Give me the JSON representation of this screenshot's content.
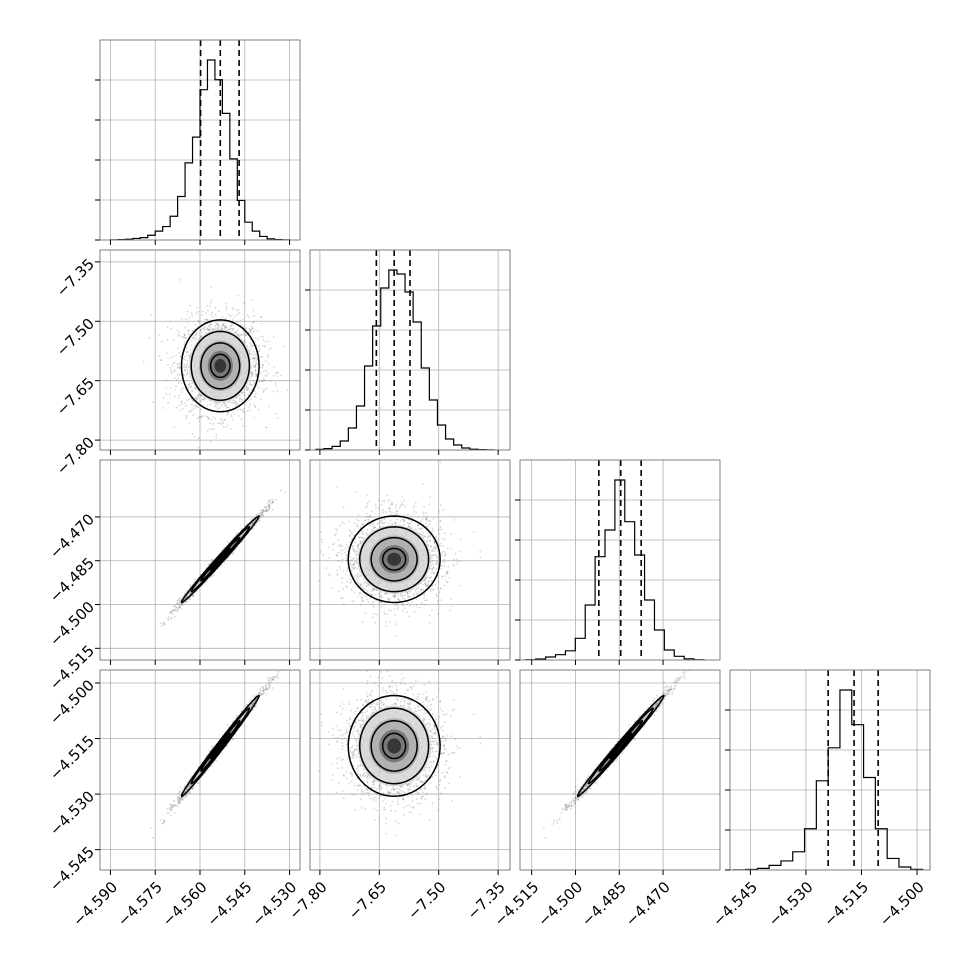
{
  "chart_data": {
    "type": "corner",
    "n_params": 4,
    "ticks": [
      {
        "values": [
          -4.59,
          -4.575,
          -4.56,
          -4.545,
          -4.53
        ],
        "labels": [
          "−4.590",
          "−4.575",
          "−4.560",
          "−4.545",
          "−4.530"
        ]
      },
      {
        "values": [
          -7.8,
          -7.65,
          -7.5,
          -7.35
        ],
        "labels": [
          "−7.80",
          "−7.65",
          "−7.50",
          "−7.35"
        ]
      },
      {
        "values": [
          -4.515,
          -4.5,
          -4.485,
          -4.47
        ],
        "labels": [
          "−4.515",
          "−4.500",
          "−4.485",
          "−4.470"
        ]
      },
      {
        "values": [
          -4.545,
          -4.53,
          -4.515,
          -4.5
        ],
        "labels": [
          "−4.545",
          "−4.530",
          "−4.515",
          "−4.500"
        ]
      }
    ],
    "ranges": [
      [
        -4.5935,
        -4.5265
      ],
      [
        -7.825,
        -7.32
      ],
      [
        -4.519,
        -4.4505
      ],
      [
        -4.5505,
        -4.4965
      ]
    ],
    "quantiles": [
      [
        -4.5598,
        -4.5532,
        -4.5469
      ],
      [
        -7.6575,
        -7.6125,
        -7.5725
      ],
      [
        -4.492,
        -4.4845,
        -4.4775
      ],
      [
        -4.524,
        -4.517,
        -4.5105
      ]
    ],
    "histograms": [
      {
        "edges_range": [
          -4.59,
          -4.53
        ],
        "counts": [
          1,
          2,
          4,
          8,
          12,
          24,
          45,
          68,
          120,
          220,
          390,
          520,
          760,
          910,
          810,
          640,
          410,
          200,
          90,
          45,
          18,
          6,
          2,
          1
        ]
      },
      {
        "edges_range": [
          -7.81,
          -7.36
        ],
        "counts": [
          3,
          7,
          18,
          45,
          110,
          220,
          420,
          620,
          810,
          900,
          880,
          790,
          640,
          410,
          250,
          125,
          55,
          25,
          10,
          4,
          2,
          1
        ]
      },
      {
        "edges_range": [
          -4.517,
          -4.456
        ],
        "counts": [
          2,
          6,
          18,
          32,
          55,
          130,
          330,
          620,
          780,
          1080,
          830,
          630,
          360,
          180,
          60,
          22,
          7,
          2
        ]
      },
      {
        "edges_range": [
          -4.5495,
          -4.4985
        ],
        "counts": [
          1,
          3,
          10,
          28,
          55,
          110,
          250,
          540,
          740,
          1090,
          880,
          560,
          250,
          70,
          18,
          4
        ]
      }
    ],
    "pairs": [
      {
        "x": 0,
        "y": 1,
        "center": [
          -4.5532,
          -7.6125
        ],
        "sd": [
          0.0065,
          0.058
        ],
        "corr": 0.0
      },
      {
        "x": 0,
        "y": 2,
        "center": [
          -4.5532,
          -4.4845
        ],
        "sd": [
          0.0065,
          0.0074
        ],
        "corr": 0.993
      },
      {
        "x": 0,
        "y": 3,
        "center": [
          -4.5532,
          -4.517
        ],
        "sd": [
          0.0065,
          0.0068
        ],
        "corr": 0.993
      },
      {
        "x": 1,
        "y": 2,
        "center": [
          -7.6125,
          -4.4845
        ],
        "sd": [
          0.058,
          0.0074
        ],
        "corr": 0.0
      },
      {
        "x": 1,
        "y": 3,
        "center": [
          -7.6125,
          -4.517
        ],
        "sd": [
          0.058,
          0.0068
        ],
        "corr": 0.0
      },
      {
        "x": 2,
        "y": 3,
        "center": [
          -4.4845,
          -4.517
        ],
        "sd": [
          0.0074,
          0.0068
        ],
        "corr": 0.993
      }
    ],
    "contour_levels_sigma": [
      0.5,
      1.0,
      1.5,
      2.0
    ],
    "grid": true,
    "colors": {
      "line": "#000000",
      "grid": "#b0b0b0",
      "points": "#7a7a7a",
      "frame": "#7f7f7f"
    }
  }
}
